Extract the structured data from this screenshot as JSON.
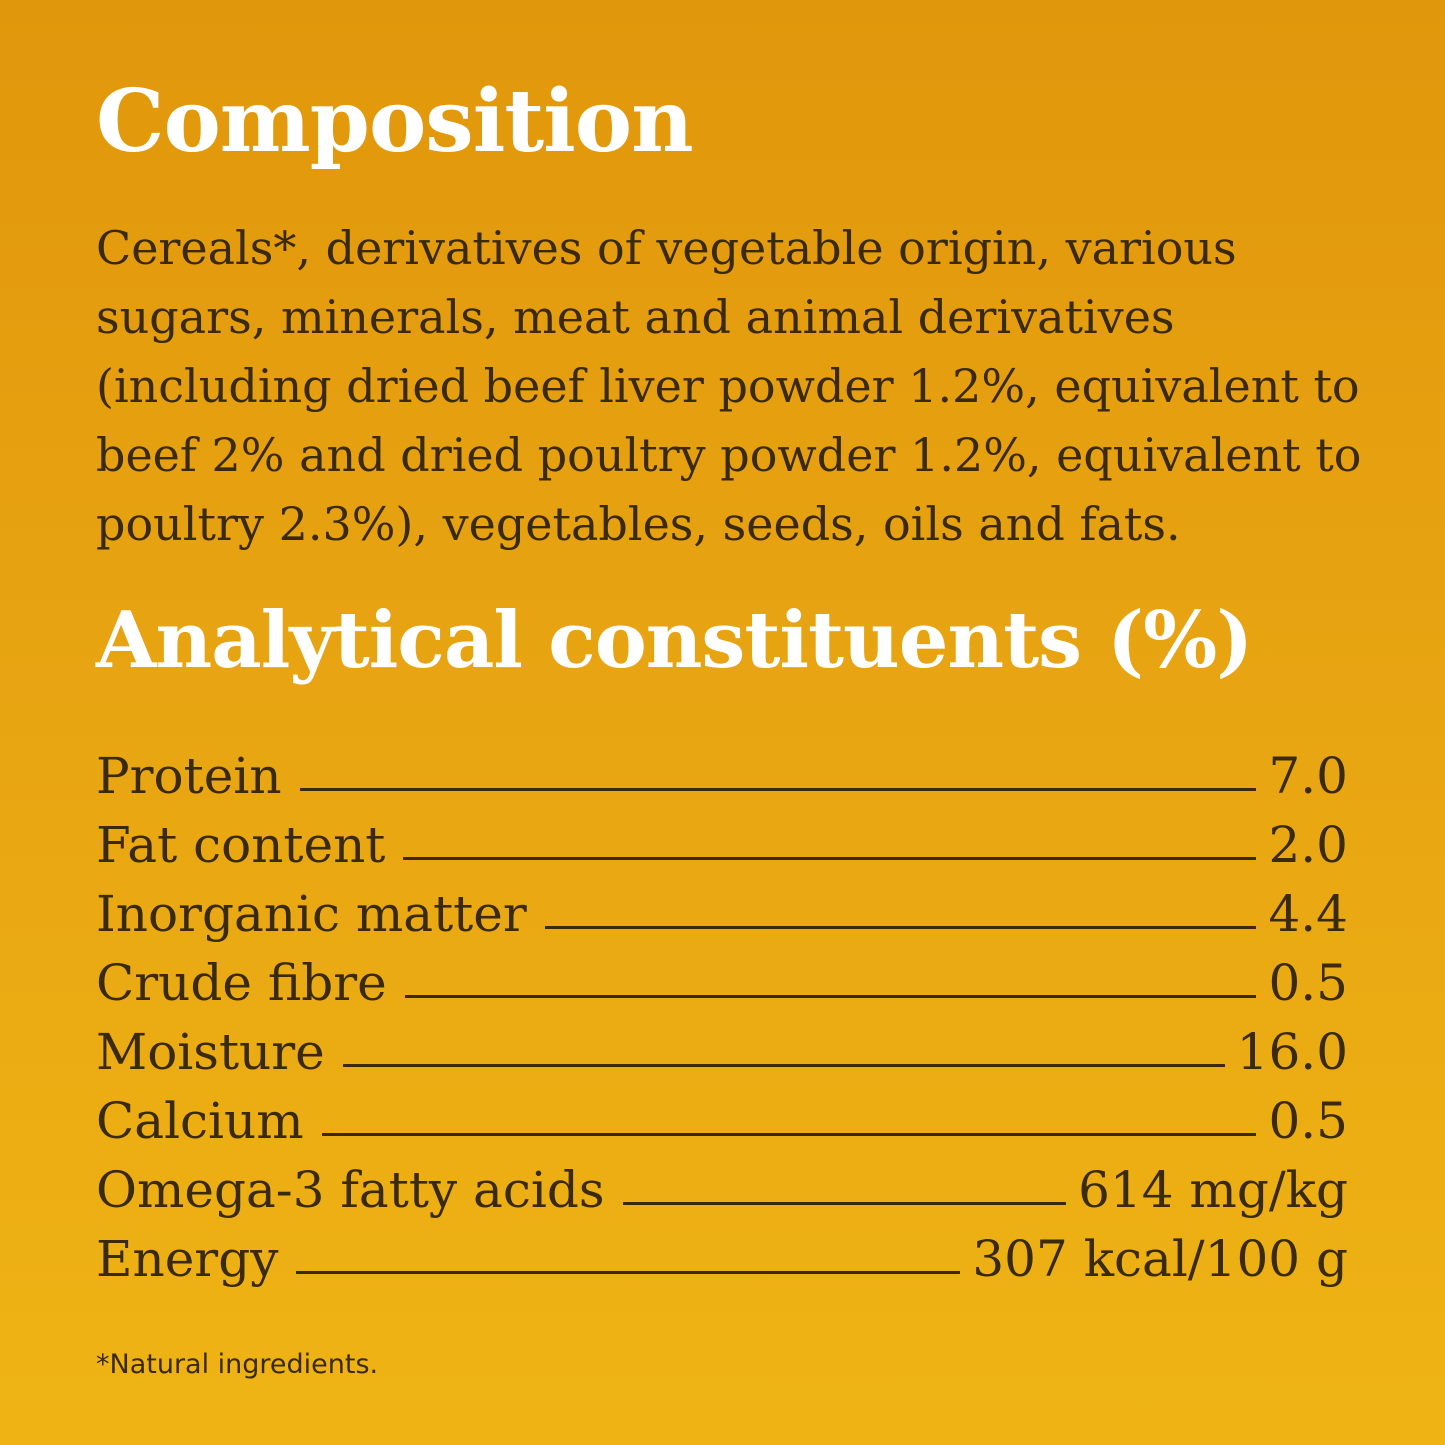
{
  "composition": {
    "heading": "Composition",
    "text": "Cereals*, derivatives of vegetable origin, various sugars, minerals, meat and animal derivatives (including dried beef liver powder 1.2%, equivalent to beef 2% and dried poultry powder 1.2%, equivalent to poultry 2.3%), vegetables, seeds, oils and fats."
  },
  "analytical": {
    "heading": "Analytical constituents (%)",
    "rows": [
      {
        "label": "Protein",
        "value": "7.0"
      },
      {
        "label": "Fat content",
        "value": "2.0"
      },
      {
        "label": "Inorganic matter",
        "value": "4.4"
      },
      {
        "label": "Crude fibre",
        "value": "0.5"
      },
      {
        "label": "Moisture",
        "value": "16.0"
      },
      {
        "label": "Calcium",
        "value": "0.5"
      },
      {
        "label": "Omega-3 fatty acids",
        "value": "614 mg/kg"
      },
      {
        "label": "Energy",
        "value": "307 kcal/100 g"
      }
    ]
  },
  "footnote": "*Natural ingredients.",
  "colors": {
    "background_top": "#e1970b",
    "background_bottom": "#efb414",
    "heading": "#ffffff",
    "text": "#3a2a0c"
  }
}
